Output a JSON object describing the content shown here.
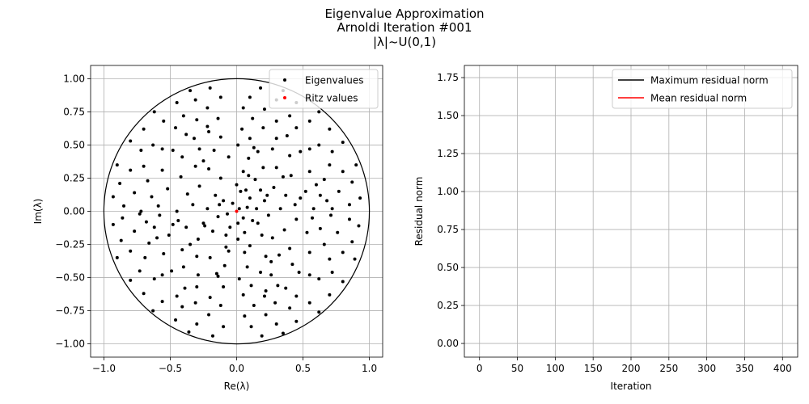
{
  "figure": {
    "title_lines": [
      "Eigenvalue Approximation",
      "Arnoldi Iteration #001",
      "|λ|~U(0,1)"
    ]
  },
  "chart_data": [
    {
      "type": "scatter",
      "xlabel": "Re(λ)",
      "ylabel": "Im(λ)",
      "xlim": [
        -1.1,
        1.1
      ],
      "ylim": [
        -1.1,
        1.1
      ],
      "x_ticks": [
        -1.0,
        -0.5,
        0.0,
        0.5,
        1.0
      ],
      "x_tick_labels": [
        "−1.0",
        "−0.5",
        "0.0",
        "0.5",
        "1.0"
      ],
      "y_ticks": [
        -1.0,
        -0.75,
        -0.5,
        -0.25,
        0.0,
        0.25,
        0.5,
        0.75,
        1.0
      ],
      "y_tick_labels": [
        "−1.00",
        "−0.75",
        "−0.50",
        "−0.25",
        "0.00",
        "0.25",
        "0.50",
        "0.75",
        "1.00"
      ],
      "grid": true,
      "legend_position": "top-right",
      "unit_circle_radius": 1.0,
      "series": [
        {
          "name": "Eigenvalues",
          "color": "#000000",
          "points": [
            [
              0.02,
              0.02
            ],
            [
              0.05,
              -0.05
            ],
            [
              -0.03,
              0.06
            ],
            [
              0.08,
              0.03
            ],
            [
              -0.07,
              -0.02
            ],
            [
              0.01,
              -0.09
            ],
            [
              0.1,
              0.1
            ],
            [
              -0.1,
              0.08
            ],
            [
              0.12,
              -0.07
            ],
            [
              -0.05,
              -0.12
            ],
            [
              0.15,
              0.02
            ],
            [
              -0.14,
              -0.04
            ],
            [
              0.03,
              0.15
            ],
            [
              0.06,
              -0.16
            ],
            [
              -0.16,
              0.12
            ],
            [
              0.18,
              0.16
            ],
            [
              -0.18,
              -0.15
            ],
            [
              0.19,
              -0.18
            ],
            [
              0.0,
              0.2
            ],
            [
              0.01,
              -0.21
            ],
            [
              0.21,
              0.08
            ],
            [
              -0.22,
              0.02
            ],
            [
              0.24,
              -0.03
            ],
            [
              -0.25,
              -0.09
            ],
            [
              0.14,
              0.24
            ],
            [
              -0.12,
              0.25
            ],
            [
              0.1,
              -0.26
            ],
            [
              -0.08,
              -0.27
            ],
            [
              0.28,
              0.18
            ],
            [
              -0.28,
              0.19
            ],
            [
              0.27,
              -0.2
            ],
            [
              -0.29,
              -0.21
            ],
            [
              0.05,
              0.3
            ],
            [
              0.06,
              -0.31
            ],
            [
              0.33,
              0.02
            ],
            [
              -0.33,
              0.05
            ],
            [
              0.2,
              0.33
            ],
            [
              -0.21,
              0.32
            ],
            [
              0.22,
              -0.34
            ],
            [
              -0.2,
              -0.35
            ],
            [
              0.37,
              0.12
            ],
            [
              -0.37,
              0.13
            ],
            [
              0.36,
              -0.14
            ],
            [
              -0.38,
              -0.12
            ],
            [
              0.09,
              0.4
            ],
            [
              -0.06,
              0.41
            ],
            [
              0.08,
              -0.42
            ],
            [
              -0.09,
              -0.41
            ],
            [
              0.3,
              0.33
            ],
            [
              -0.31,
              0.34
            ],
            [
              0.32,
              -0.33
            ],
            [
              -0.3,
              -0.34
            ],
            [
              0.44,
              0.05
            ],
            [
              -0.45,
              0.0
            ],
            [
              0.45,
              -0.06
            ],
            [
              -0.44,
              -0.07
            ],
            [
              0.16,
              0.45
            ],
            [
              -0.17,
              0.46
            ],
            [
              0.18,
              -0.46
            ],
            [
              -0.15,
              -0.47
            ],
            [
              0.41,
              0.27
            ],
            [
              -0.42,
              0.26
            ],
            [
              0.4,
              -0.28
            ],
            [
              -0.41,
              -0.29
            ],
            [
              0.01,
              0.5
            ],
            [
              0.02,
              -0.51
            ],
            [
              0.27,
              0.47
            ],
            [
              -0.28,
              0.47
            ],
            [
              0.26,
              -0.48
            ],
            [
              -0.29,
              -0.48
            ],
            [
              0.52,
              0.15
            ],
            [
              -0.52,
              0.17
            ],
            [
              0.53,
              -0.16
            ],
            [
              -0.51,
              -0.18
            ],
            [
              0.1,
              0.55
            ],
            [
              -0.12,
              0.56
            ],
            [
              0.11,
              -0.56
            ],
            [
              -0.1,
              -0.57
            ],
            [
              0.4,
              0.42
            ],
            [
              -0.41,
              0.41
            ],
            [
              0.42,
              -0.4
            ],
            [
              -0.4,
              -0.42
            ],
            [
              0.58,
              0.02
            ],
            [
              -0.59,
              0.04
            ],
            [
              0.57,
              -0.05
            ],
            [
              -0.58,
              -0.03
            ],
            [
              0.3,
              0.55
            ],
            [
              -0.32,
              0.55
            ],
            [
              0.31,
              -0.56
            ],
            [
              -0.3,
              -0.57
            ],
            [
              0.55,
              0.3
            ],
            [
              -0.56,
              0.31
            ],
            [
              0.55,
              -0.31
            ],
            [
              -0.55,
              -0.32
            ],
            [
              0.04,
              0.62
            ],
            [
              0.05,
              -0.63
            ],
            [
              0.48,
              0.45
            ],
            [
              -0.48,
              0.46
            ],
            [
              0.47,
              -0.46
            ],
            [
              -0.49,
              -0.45
            ],
            [
              0.63,
              0.12
            ],
            [
              -0.64,
              0.11
            ],
            [
              0.63,
              -0.13
            ],
            [
              -0.62,
              -0.12
            ],
            [
              0.2,
              0.63
            ],
            [
              -0.22,
              0.64
            ],
            [
              0.21,
              -0.64
            ],
            [
              -0.2,
              -0.65
            ],
            [
              0.38,
              0.57
            ],
            [
              -0.38,
              0.58
            ],
            [
              0.37,
              -0.58
            ],
            [
              -0.39,
              -0.58
            ],
            [
              0.66,
              0.24
            ],
            [
              -0.67,
              0.23
            ],
            [
              0.66,
              -0.25
            ],
            [
              -0.66,
              -0.24
            ],
            [
              0.12,
              0.7
            ],
            [
              -0.14,
              0.7
            ],
            [
              0.13,
              -0.71
            ],
            [
              -0.12,
              -0.71
            ],
            [
              0.55,
              0.47
            ],
            [
              -0.56,
              0.47
            ],
            [
              0.55,
              -0.48
            ],
            [
              -0.56,
              -0.48
            ],
            [
              0.72,
              0.02
            ],
            [
              -0.72,
              0.0
            ],
            [
              0.71,
              -0.03
            ],
            [
              -0.73,
              -0.02
            ],
            [
              0.3,
              0.68
            ],
            [
              -0.3,
              0.69
            ],
            [
              0.29,
              -0.69
            ],
            [
              -0.31,
              -0.69
            ],
            [
              0.7,
              0.35
            ],
            [
              -0.7,
              0.34
            ],
            [
              0.7,
              -0.36
            ],
            [
              -0.69,
              -0.35
            ],
            [
              0.45,
              0.63
            ],
            [
              -0.46,
              0.63
            ],
            [
              0.45,
              -0.64
            ],
            [
              -0.45,
              -0.64
            ],
            [
              0.77,
              0.15
            ],
            [
              -0.77,
              0.14
            ],
            [
              0.76,
              -0.16
            ],
            [
              -0.77,
              -0.15
            ],
            [
              0.05,
              0.78
            ],
            [
              0.06,
              -0.79
            ],
            [
              0.62,
              0.5
            ],
            [
              -0.63,
              0.5
            ],
            [
              0.62,
              -0.51
            ],
            [
              -0.62,
              -0.51
            ],
            [
              0.21,
              0.77
            ],
            [
              -0.22,
              0.78
            ],
            [
              0.22,
              -0.78
            ],
            [
              -0.21,
              -0.78
            ],
            [
              0.4,
              0.72
            ],
            [
              -0.4,
              0.72
            ],
            [
              0.4,
              -0.73
            ],
            [
              -0.41,
              -0.72
            ],
            [
              0.8,
              0.3
            ],
            [
              -0.8,
              0.31
            ],
            [
              0.8,
              -0.31
            ],
            [
              -0.8,
              -0.3
            ],
            [
              0.72,
              0.45
            ],
            [
              -0.72,
              0.46
            ],
            [
              0.72,
              -0.46
            ],
            [
              -0.73,
              -0.45
            ],
            [
              0.85,
              0.05
            ],
            [
              -0.85,
              0.04
            ],
            [
              0.85,
              -0.06
            ],
            [
              -0.86,
              -0.05
            ],
            [
              0.1,
              0.86
            ],
            [
              -0.12,
              0.86
            ],
            [
              0.11,
              -0.87
            ],
            [
              -0.1,
              -0.87
            ],
            [
              0.55,
              0.68
            ],
            [
              -0.55,
              0.68
            ],
            [
              0.55,
              -0.69
            ],
            [
              -0.56,
              -0.68
            ],
            [
              0.87,
              0.22
            ],
            [
              -0.88,
              0.21
            ],
            [
              0.87,
              -0.23
            ],
            [
              -0.87,
              -0.22
            ],
            [
              0.3,
              0.84
            ],
            [
              -0.31,
              0.84
            ],
            [
              0.3,
              -0.85
            ],
            [
              -0.3,
              -0.85
            ],
            [
              0.7,
              0.62
            ],
            [
              -0.7,
              0.62
            ],
            [
              0.7,
              -0.63
            ],
            [
              -0.7,
              -0.62
            ],
            [
              0.9,
              0.35
            ],
            [
              -0.9,
              0.35
            ],
            [
              0.89,
              -0.36
            ],
            [
              -0.9,
              -0.35
            ],
            [
              0.45,
              0.82
            ],
            [
              -0.45,
              0.82
            ],
            [
              0.45,
              -0.83
            ],
            [
              -0.46,
              -0.82
            ],
            [
              0.93,
              0.1
            ],
            [
              -0.93,
              0.11
            ],
            [
              0.92,
              -0.11
            ],
            [
              -0.93,
              -0.1
            ],
            [
              0.18,
              0.93
            ],
            [
              -0.2,
              0.93
            ],
            [
              0.19,
              -0.94
            ],
            [
              -0.18,
              -0.94
            ],
            [
              0.8,
              0.52
            ],
            [
              -0.8,
              0.53
            ],
            [
              0.8,
              -0.53
            ],
            [
              -0.8,
              -0.52
            ],
            [
              0.62,
              0.75
            ],
            [
              -0.62,
              0.75
            ],
            [
              0.62,
              -0.76
            ],
            [
              -0.63,
              -0.75
            ],
            [
              0.35,
              0.91
            ],
            [
              -0.35,
              0.91
            ],
            [
              0.35,
              -0.92
            ],
            [
              -0.36,
              -0.91
            ],
            [
              0.07,
              0.16
            ],
            [
              -0.08,
              -0.18
            ],
            [
              0.16,
              -0.09
            ],
            [
              -0.13,
              0.05
            ],
            [
              0.23,
              0.12
            ],
            [
              -0.24,
              -0.11
            ],
            [
              0.09,
              0.27
            ],
            [
              -0.06,
              -0.3
            ],
            [
              0.35,
              0.26
            ],
            [
              -0.35,
              -0.25
            ],
            [
              0.26,
              -0.38
            ],
            [
              -0.25,
              0.38
            ],
            [
              0.48,
              0.1
            ],
            [
              -0.48,
              -0.1
            ],
            [
              0.13,
              0.48
            ],
            [
              -0.14,
              -0.49
            ],
            [
              0.6,
              0.2
            ],
            [
              -0.6,
              -0.2
            ],
            [
              0.22,
              -0.6
            ],
            [
              -0.21,
              0.6
            ],
            [
              0.68,
              0.08
            ],
            [
              -0.68,
              -0.08
            ]
          ]
        },
        {
          "name": "Ritz values",
          "color": "#ff0000",
          "points": [
            [
              0.0,
              0.0
            ]
          ]
        }
      ]
    },
    {
      "type": "line",
      "xlabel": "Iteration",
      "ylabel": "Residual norm",
      "xlim": [
        -20,
        420
      ],
      "ylim": [
        -0.09,
        1.83
      ],
      "x_ticks": [
        0,
        50,
        100,
        150,
        200,
        250,
        300,
        350,
        400
      ],
      "x_tick_labels": [
        "0",
        "50",
        "100",
        "150",
        "200",
        "250",
        "300",
        "350",
        "400"
      ],
      "y_ticks": [
        0.0,
        0.25,
        0.5,
        0.75,
        1.0,
        1.25,
        1.5,
        1.75
      ],
      "y_tick_labels": [
        "0.00",
        "0.25",
        "0.50",
        "0.75",
        "1.00",
        "1.25",
        "1.50",
        "1.75"
      ],
      "grid": true,
      "legend_position": "top-right",
      "series": [
        {
          "name": "Maximum residual norm",
          "color": "#000000",
          "x": [],
          "y": []
        },
        {
          "name": "Mean residual norm",
          "color": "#ff0000",
          "x": [],
          "y": []
        }
      ]
    }
  ]
}
